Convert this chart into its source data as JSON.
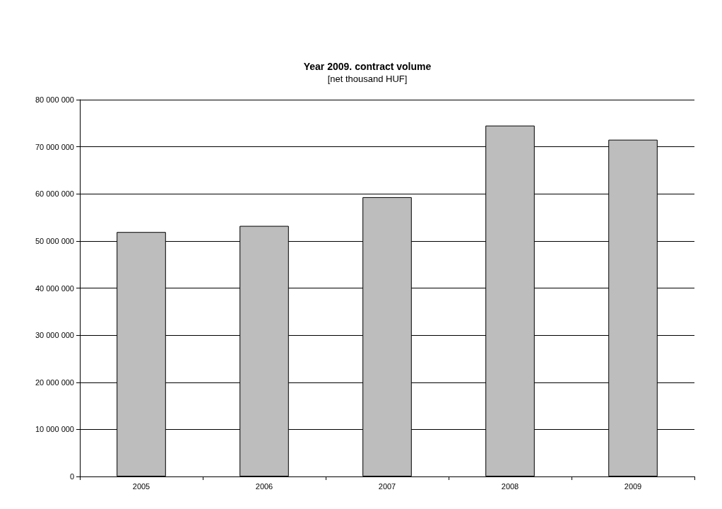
{
  "chart_data": {
    "type": "bar",
    "title": "Year 2009. contract volume",
    "subtitle": "[net thousand HUF]",
    "categories": [
      "2005",
      "2006",
      "2007",
      "2008",
      "2009"
    ],
    "values": [
      51900000,
      53200000,
      59300000,
      74500000,
      71500000
    ],
    "color": "#bdbdbd",
    "ylim": [
      0,
      80000000
    ],
    "yticks": [
      {
        "value": 0,
        "label": "0"
      },
      {
        "value": 10000000,
        "label": "10 000 000"
      },
      {
        "value": 20000000,
        "label": "20 000 000"
      },
      {
        "value": 30000000,
        "label": "30 000 000"
      },
      {
        "value": 40000000,
        "label": "40 000 000"
      },
      {
        "value": 50000000,
        "label": "50 000 000"
      },
      {
        "value": 60000000,
        "label": "60 000 000"
      },
      {
        "value": 70000000,
        "label": "70 000 000"
      },
      {
        "value": 80000000,
        "label": "80 000 000"
      }
    ],
    "grid": "y"
  }
}
